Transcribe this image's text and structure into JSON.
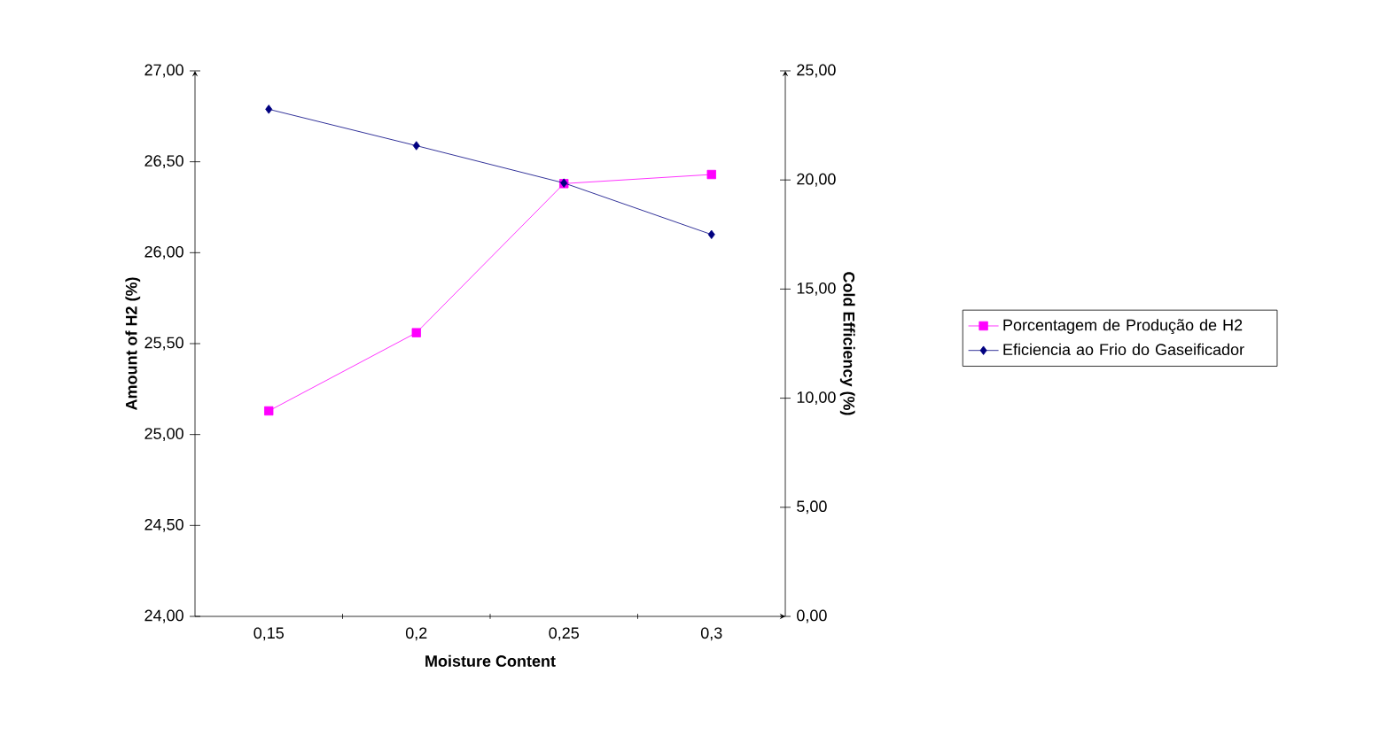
{
  "chart_data": {
    "type": "line",
    "xlabel": "Moisture Content",
    "ylabel": "Amount of H2 (%)",
    "y2label": "Cold Efficiency (%)",
    "categories": [
      "0,15",
      "0,2",
      "0,25",
      "0,3"
    ],
    "series": [
      {
        "name": "Porcentagem de Produção de H2",
        "color": "#ff00ff",
        "marker": "square",
        "values": [
          25.13,
          25.56,
          26.38,
          26.43
        ]
      },
      {
        "name": "Eficiencia ao Frio do Gaseificador",
        "color": "#000080",
        "marker": "diamond",
        "axis": "y2",
        "values": [
          23.24,
          21.57,
          19.86,
          17.5
        ]
      }
    ],
    "ylim": [
      24,
      27
    ],
    "yticks": [
      {
        "value": 24,
        "label": "24,00"
      },
      {
        "value": 24.5,
        "label": "24,50"
      },
      {
        "value": 25,
        "label": "25,00"
      },
      {
        "value": 25.5,
        "label": "25,50"
      },
      {
        "value": 26,
        "label": "26,00"
      },
      {
        "value": 26.5,
        "label": "26,50"
      },
      {
        "value": 27,
        "label": "27,00"
      }
    ],
    "y2lim": [
      0,
      25
    ],
    "y2ticks": [
      {
        "value": 0,
        "label": "0,00"
      },
      {
        "value": 5,
        "label": "5,00"
      },
      {
        "value": 10,
        "label": "10,00"
      },
      {
        "value": 15,
        "label": "15,00"
      },
      {
        "value": 20,
        "label": "20,00"
      },
      {
        "value": 25,
        "label": "25,00"
      }
    ],
    "legend": "right"
  }
}
